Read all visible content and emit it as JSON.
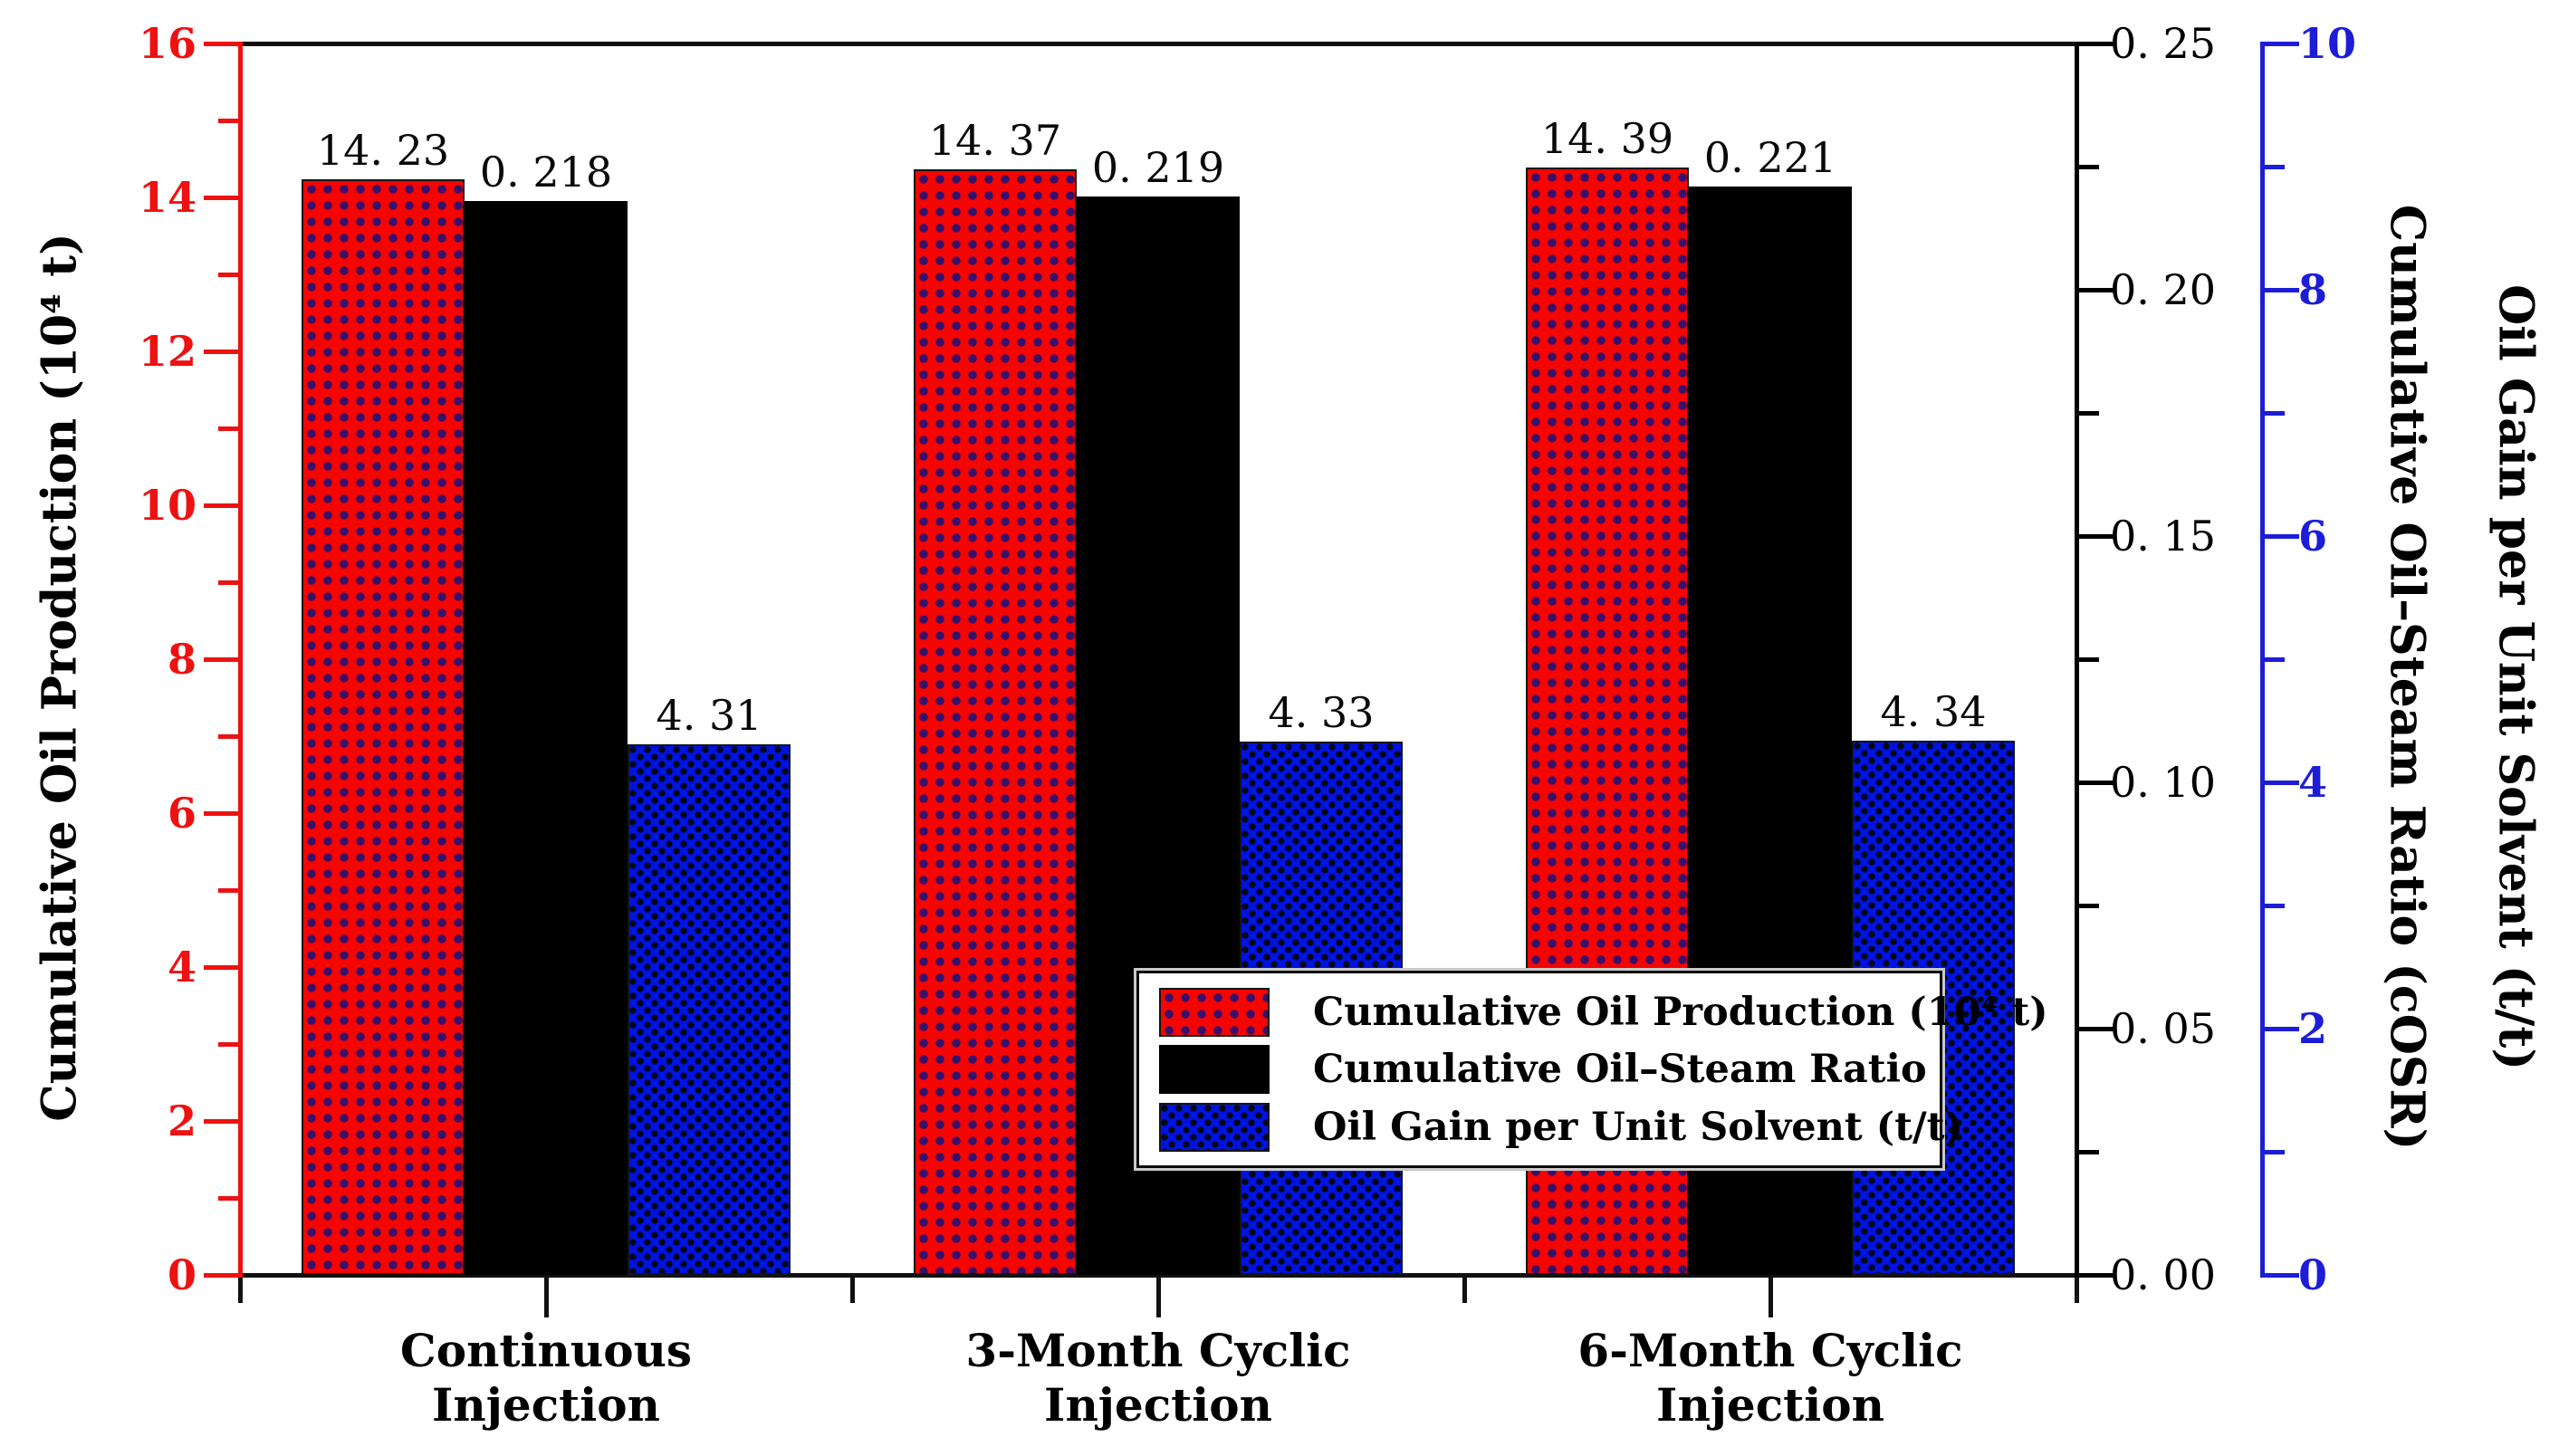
{
  "chart_data": {
    "type": "bar",
    "categories": [
      [
        "Continuous",
        "Injection"
      ],
      [
        "3-Month Cyclic",
        "Injection"
      ],
      [
        "6-Month Cyclic",
        "Injection"
      ]
    ],
    "series": [
      {
        "name": "Cumulative Oil Production (10⁴ t)",
        "axis": "left",
        "pattern": "red-dots",
        "values": [
          14.23,
          14.37,
          14.39
        ],
        "value_labels": [
          "14. 23",
          "14. 37",
          "14. 39"
        ]
      },
      {
        "name": "Cumulative Oil–Steam Ratio",
        "axis": "right_inner",
        "pattern": "solid-black",
        "values": [
          0.218,
          0.219,
          0.221
        ],
        "value_labels": [
          "0. 218",
          "0. 219",
          "0. 221"
        ]
      },
      {
        "name": "Oil Gain per Unit Solvent (t/t)",
        "axis": "right_outer",
        "pattern": "blue-check",
        "values": [
          4.31,
          4.33,
          4.34
        ],
        "value_labels": [
          "4. 31",
          "4. 33",
          "4. 34"
        ]
      }
    ],
    "axes": {
      "left": {
        "title": "Cumulative Oil Production (10⁴ t)",
        "color": "#ee1111",
        "min": 0,
        "max": 16,
        "major_step": 2,
        "minor_step": 1,
        "tick_labels": [
          "0",
          "2",
          "4",
          "6",
          "8",
          "10",
          "12",
          "14",
          "16"
        ]
      },
      "right_inner": {
        "title": "Cumulative Oil–Steam Ratio (cOSR)",
        "color": "#000000",
        "min": 0,
        "max": 0.25,
        "major_step": 0.05,
        "minor_step": 0.025,
        "tick_labels": [
          "0. 00",
          "0. 05",
          "0. 10",
          "0. 15",
          "0. 20",
          "0. 25"
        ]
      },
      "right_outer": {
        "title": "Oil Gain per Unit Solvent (t/t)",
        "color": "#1d1dd8",
        "min": 0,
        "max": 10,
        "major_step": 2,
        "minor_step": 1,
        "tick_labels": [
          "0",
          "2",
          "4",
          "6",
          "8",
          "10"
        ]
      }
    },
    "legend_position": "inside-bottom-center",
    "grid": false
  }
}
